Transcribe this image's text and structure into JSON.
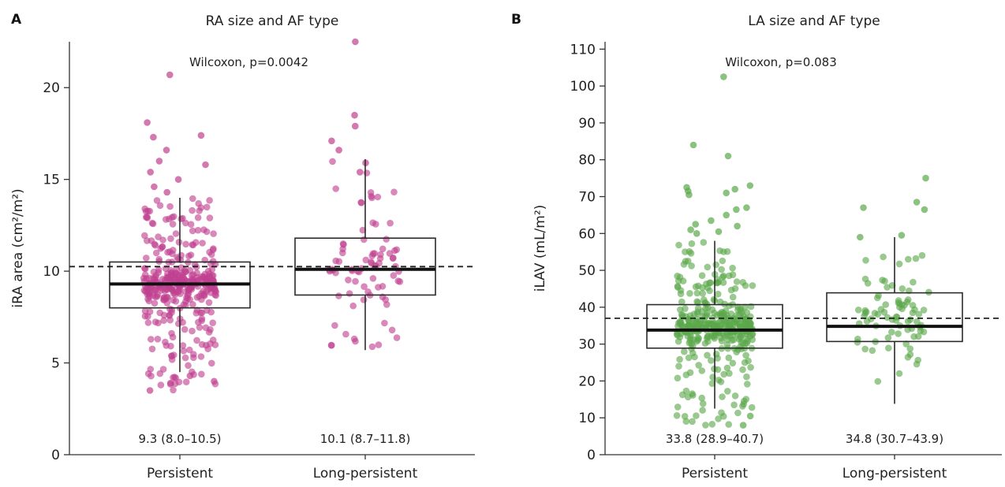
{
  "chart_data": [
    {
      "type": "box",
      "panel": "A",
      "title": "RA size and AF type",
      "ylabel": "iRA area (cm²/m²)",
      "ylim": [
        0,
        22.5
      ],
      "yticks": [
        0,
        5,
        10,
        15,
        20
      ],
      "categories": [
        "Persistent",
        "Long-persistent"
      ],
      "point_color": "#c0408f",
      "annotation": "Wilcoxon, p=0.0042",
      "reference_line": 10.25,
      "boxes": [
        {
          "category": "Persistent",
          "whisker_low": 4.5,
          "q1": 8.0,
          "median": 9.3,
          "q3": 10.5,
          "whisker_high": 14.0,
          "summary": "9.3 (8.0–10.5)"
        },
        {
          "category": "Long-persistent",
          "whisker_low": 5.7,
          "q1": 8.7,
          "median": 10.1,
          "q3": 11.8,
          "whisker_high": 16.1,
          "summary": "10.1 (8.7–11.8)"
        }
      ],
      "points": [
        {
          "category": "Persistent",
          "n": 380,
          "seed": 11,
          "core": [
            8.0,
            10.5
          ],
          "min": 3.5,
          "max": 14.0,
          "outliers": [
            20.7,
            18.1,
            17.4,
            17.3,
            16.6,
            16.0,
            15.8,
            15.4,
            15.0,
            14.6,
            14.3,
            4.3,
            4.0,
            3.9,
            3.5
          ]
        },
        {
          "category": "Long-persistent",
          "n": 80,
          "seed": 29,
          "core": [
            8.7,
            11.8
          ],
          "min": 5.7,
          "max": 16.1,
          "outliers": [
            22.5,
            18.5,
            17.9,
            17.1,
            16.6,
            15.9,
            15.4
          ]
        }
      ]
    },
    {
      "type": "box",
      "panel": "B",
      "title": "LA size and AF type",
      "ylabel": "iLAV (mL/m²)",
      "ylim": [
        0,
        112
      ],
      "yticks": [
        0,
        10,
        20,
        30,
        40,
        50,
        60,
        70,
        80,
        90,
        100,
        110
      ],
      "categories": [
        "Persistent",
        "Long-persistent"
      ],
      "point_color": "#5aa84a",
      "annotation": "Wilcoxon, p=0.083",
      "reference_line": 37.0,
      "boxes": [
        {
          "category": "Persistent",
          "whisker_low": 12.5,
          "q1": 28.9,
          "median": 33.8,
          "q3": 40.7,
          "whisker_high": 58.0,
          "summary": "33.8 (28.9–40.7)"
        },
        {
          "category": "Long-persistent",
          "whisker_low": 13.8,
          "q1": 30.7,
          "median": 34.8,
          "q3": 43.9,
          "whisker_high": 59.0,
          "summary": "34.8 (30.7–43.9)"
        }
      ],
      "points": [
        {
          "category": "Persistent",
          "n": 380,
          "seed": 47,
          "core": [
            28.9,
            40.7
          ],
          "min": 7.5,
          "max": 58.0,
          "outliers": [
            102.5,
            84.0,
            81.0,
            73.0,
            72.5,
            72.0,
            71.5,
            71.0,
            70.5,
            67.0,
            66.5,
            65.0,
            63.5,
            62.5,
            62.0,
            61.0,
            60.5,
            60.0,
            10.5,
            8.0
          ]
        },
        {
          "category": "Long-persistent",
          "n": 80,
          "seed": 83,
          "core": [
            30.7,
            43.9
          ],
          "min": 13.8,
          "max": 59.0,
          "outliers": [
            75.0,
            68.5,
            67.0,
            66.5,
            59.5,
            59.0
          ]
        }
      ]
    }
  ]
}
